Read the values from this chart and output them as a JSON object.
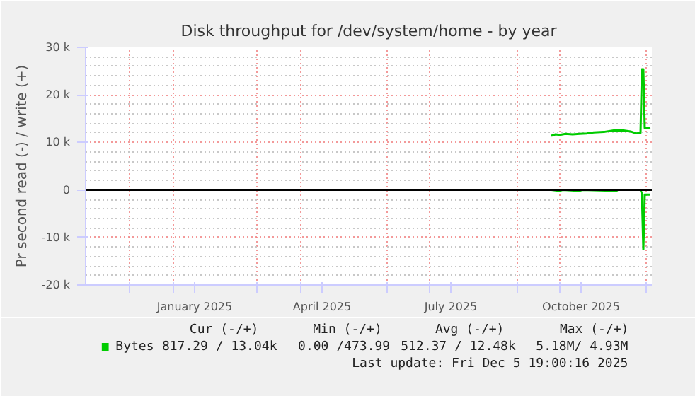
{
  "chart_data": {
    "type": "line",
    "title": "Disk throughput for /dev/system/home - by year",
    "ylabel": "Pr second read (-) / write (+)",
    "xlim": [
      "2024-10-31",
      "2025-12-05"
    ],
    "xticks": [
      {
        "value": "2024-12-01",
        "label": null
      },
      {
        "value": "2025-01-01",
        "label": null
      },
      {
        "value": "2025-01-16",
        "label": "January 2025"
      },
      {
        "value": "2025-03-01",
        "label": null
      },
      {
        "value": "2025-04-01",
        "label": null
      },
      {
        "value": "2025-04-16",
        "label": "April 2025"
      },
      {
        "value": "2025-06-01",
        "label": null
      },
      {
        "value": "2025-07-01",
        "label": null
      },
      {
        "value": "2025-07-16",
        "label": "July 2025"
      },
      {
        "value": "2025-09-01",
        "label": null
      },
      {
        "value": "2025-10-01",
        "label": null
      },
      {
        "value": "2025-10-16",
        "label": "October 2025"
      },
      {
        "value": "2025-12-01",
        "label": null
      }
    ],
    "ylim": [
      -20000,
      30000
    ],
    "yticks": [
      {
        "value": -20000,
        "label": "-20 k"
      },
      {
        "value": -10000,
        "label": "-10 k"
      },
      0,
      {
        "value": 10000,
        "label": "10 k"
      },
      {
        "value": 20000,
        "label": "20 k"
      },
      {
        "value": 30000,
        "label": "30 k"
      }
    ],
    "grid": true,
    "legend": "bottom left",
    "ref_lines": [
      {
        "axis": "y",
        "value": 0,
        "color": "#000000"
      }
    ],
    "series": [
      {
        "name": "Bytes",
        "color": "#00cc00",
        "x": [
          "2025-09-25",
          "2025-09-28",
          "2025-10-01",
          "2025-10-05",
          "2025-10-10",
          "2025-10-15",
          "2025-10-20",
          "2025-10-25",
          "2025-11-01",
          "2025-11-08",
          "2025-11-15",
          "2025-11-20",
          "2025-11-24",
          "2025-11-27",
          "2025-11-28",
          "2025-11-29",
          "2025-11-30",
          "2025-12-04"
        ],
        "values": [
          11400,
          11700,
          11600,
          11800,
          11700,
          11800,
          11900,
          12100,
          12200,
          12500,
          12500,
          12300,
          11900,
          12000,
          25400,
          25400,
          13000,
          13100
        ]
      },
      {
        "color": "#00cc00",
        "x": [
          "2025-09-25",
          "2025-10-01",
          "2025-10-03",
          "2025-10-15",
          "2025-10-17",
          "2025-11-10",
          "2025-11-11",
          "2025-11-27",
          "2025-11-28",
          "2025-11-29",
          "2025-11-30",
          "2025-12-04"
        ],
        "values": [
          0,
          -200,
          0,
          -200,
          0,
          -200,
          0,
          0,
          -800,
          -12500,
          -1000,
          -1000
        ]
      }
    ],
    "annotations": [
      "Cur (-/+)",
      "Min (-/+)",
      "Avg (-/+)",
      "Max (-/+)",
      "817.29 / 13.04k",
      "0.00 /473.99",
      "512.37 / 12.48k",
      "5.18M/  4.93M",
      "Last update: Fri Dec  5 19:00:16 2025"
    ]
  }
}
